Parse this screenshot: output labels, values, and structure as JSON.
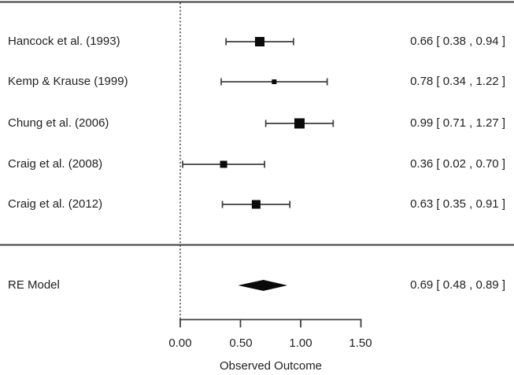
{
  "chart_data": {
    "type": "forest",
    "title": "",
    "xlabel": "Observed Outcome",
    "xlim": [
      0,
      1.5
    ],
    "x_tick_values": [
      0,
      0.5,
      1.0,
      1.5
    ],
    "x_tick_labels": [
      "0.00",
      "0.50",
      "1.00",
      "1.50"
    ],
    "reference_line_x": 0,
    "grid": false,
    "studies": [
      {
        "label": "Hancock et al. (1993)",
        "estimate": 0.66,
        "ci_lower": 0.38,
        "ci_upper": 0.94,
        "annotation": "0.66 [ 0.38 , 0.94 ]",
        "marker_size": 12
      },
      {
        "label": "Kemp & Krause (1999)",
        "estimate": 0.78,
        "ci_lower": 0.34,
        "ci_upper": 1.22,
        "annotation": "0.78 [ 0.34 , 1.22 ]",
        "marker_size": 6
      },
      {
        "label": "Chung et al. (2006)",
        "estimate": 0.99,
        "ci_lower": 0.71,
        "ci_upper": 1.27,
        "annotation": "0.99 [ 0.71 , 1.27 ]",
        "marker_size": 13
      },
      {
        "label": "Craig et al. (2008)",
        "estimate": 0.36,
        "ci_lower": 0.02,
        "ci_upper": 0.7,
        "annotation": "0.36 [ 0.02 , 0.70 ]",
        "marker_size": 9
      },
      {
        "label": "Craig et al. (2012)",
        "estimate": 0.63,
        "ci_lower": 0.35,
        "ci_upper": 0.91,
        "annotation": "0.63 [ 0.35 , 0.91 ]",
        "marker_size": 11
      }
    ],
    "summary": {
      "label": "RE Model",
      "estimate": 0.69,
      "ci_lower": 0.48,
      "ci_upper": 0.89,
      "annotation": "0.69 [ 0.48 , 0.89 ]"
    },
    "colors": {
      "foreground": "#1f1f1f",
      "line": "#3d3d3d",
      "background": "#ffffff"
    }
  }
}
